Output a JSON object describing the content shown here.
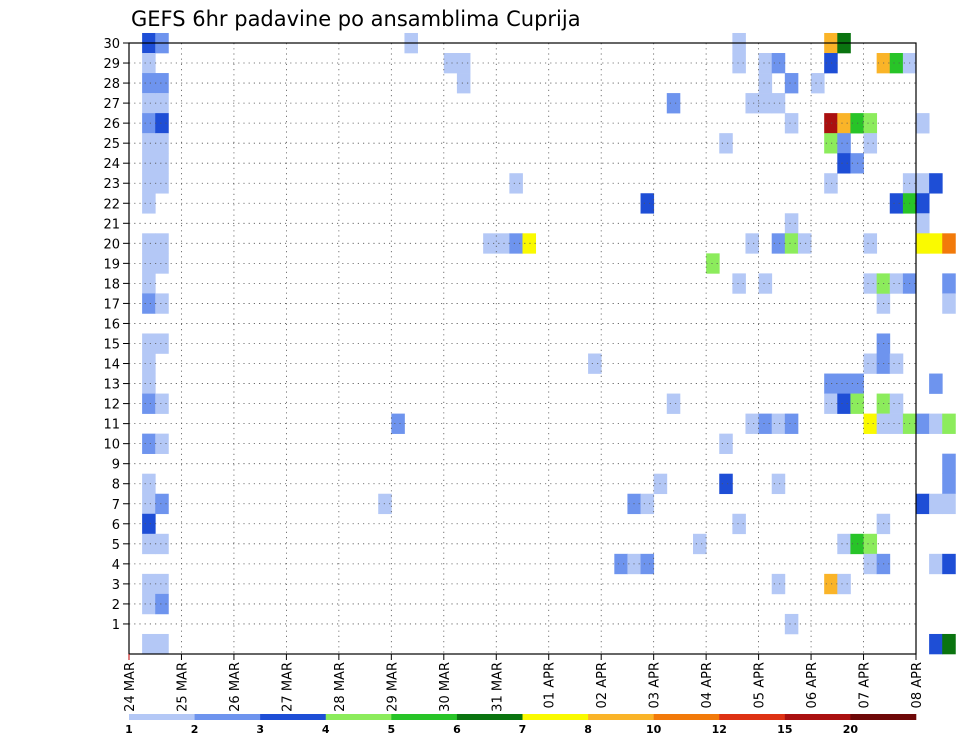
{
  "chart_data": {
    "type": "heatmap",
    "title": "GEFS 6hr padavine po ansamblima Cuprija",
    "x_tick_labels": [
      "24 MAR",
      "25 MAR",
      "26 MAR",
      "27 MAR",
      "28 MAR",
      "29 MAR",
      "30 MAR",
      "31 MAR",
      "01 APR",
      "02 APR",
      "03 APR",
      "04 APR",
      "05 APR",
      "06 APR",
      "07 APR",
      "08 APR"
    ],
    "y_tick_labels": [
      "1",
      "2",
      "3",
      "4",
      "5",
      "6",
      "7",
      "8",
      "9",
      "10",
      "11",
      "12",
      "13",
      "14",
      "15",
      "16",
      "17",
      "18",
      "19",
      "20",
      "21",
      "22",
      "23",
      "24",
      "25",
      "26",
      "27",
      "28",
      "29",
      "30"
    ],
    "y_range": [
      0,
      30
    ],
    "x_range_steps": [
      0,
      60
    ],
    "steps_per_day": 4,
    "grid": true,
    "colorbar_labels": [
      "1",
      "2",
      "3",
      "4",
      "5",
      "6",
      "7",
      "8",
      "10",
      "12",
      "15",
      "20"
    ],
    "colors": [
      "#b4c8f6",
      "#6e94ee",
      "#1e4ed6",
      "#8cec5c",
      "#28c428",
      "#0a7410",
      "#fafa00",
      "#fab428",
      "#f27a0a",
      "#de3214",
      "#aa1010",
      "#6e0808"
    ],
    "cells": [
      [
        1,
        30,
        2
      ],
      [
        1,
        29,
        0
      ],
      [
        1,
        28,
        1
      ],
      [
        1,
        27,
        0
      ],
      [
        1,
        26,
        1
      ],
      [
        1,
        25,
        0
      ],
      [
        1,
        24,
        0
      ],
      [
        1,
        23,
        0
      ],
      [
        1,
        22,
        0
      ],
      [
        1,
        20,
        0
      ],
      [
        1,
        19,
        0
      ],
      [
        1,
        18,
        0
      ],
      [
        1,
        17,
        1
      ],
      [
        1,
        15,
        0
      ],
      [
        1,
        14,
        0
      ],
      [
        1,
        13,
        0
      ],
      [
        1,
        12,
        1
      ],
      [
        1,
        10,
        1
      ],
      [
        1,
        8,
        0
      ],
      [
        1,
        7,
        0
      ],
      [
        1,
        6,
        2
      ],
      [
        1,
        5,
        0
      ],
      [
        1,
        3,
        0
      ],
      [
        1,
        2,
        0
      ],
      [
        1,
        0,
        0
      ],
      [
        2,
        30,
        1
      ],
      [
        2,
        28,
        1
      ],
      [
        2,
        27,
        0
      ],
      [
        2,
        26,
        2
      ],
      [
        2,
        25,
        0
      ],
      [
        2,
        24,
        0
      ],
      [
        2,
        23,
        0
      ],
      [
        2,
        20,
        0
      ],
      [
        2,
        19,
        0
      ],
      [
        2,
        17,
        0
      ],
      [
        2,
        15,
        0
      ],
      [
        2,
        12,
        0
      ],
      [
        2,
        10,
        0
      ],
      [
        2,
        7,
        1
      ],
      [
        2,
        5,
        0
      ],
      [
        2,
        3,
        0
      ],
      [
        2,
        2,
        1
      ],
      [
        2,
        0,
        0
      ],
      [
        19,
        7,
        0
      ],
      [
        20,
        11,
        1
      ],
      [
        21,
        30,
        0
      ],
      [
        24,
        29,
        0
      ],
      [
        25,
        29,
        0
      ],
      [
        25,
        28,
        0
      ],
      [
        27,
        20,
        0
      ],
      [
        28,
        20,
        0
      ],
      [
        29,
        20,
        1
      ],
      [
        30,
        20,
        6
      ],
      [
        29,
        23,
        0
      ],
      [
        35,
        14,
        0
      ],
      [
        37,
        4,
        1
      ],
      [
        38,
        4,
        0
      ],
      [
        39,
        4,
        1
      ],
      [
        38,
        7,
        1
      ],
      [
        39,
        7,
        0
      ],
      [
        40,
        8,
        0
      ],
      [
        39,
        22,
        2
      ],
      [
        41,
        12,
        0
      ],
      [
        41,
        27,
        1
      ],
      [
        43,
        5,
        0
      ],
      [
        44,
        19,
        3
      ],
      [
        45,
        25,
        0
      ],
      [
        45,
        10,
        0
      ],
      [
        45,
        8,
        2
      ],
      [
        46,
        30,
        0
      ],
      [
        46,
        29,
        0
      ],
      [
        46,
        18,
        0
      ],
      [
        46,
        6,
        0
      ],
      [
        47,
        27,
        0
      ],
      [
        47,
        20,
        0
      ],
      [
        47,
        11,
        0
      ],
      [
        48,
        27,
        0
      ],
      [
        48,
        29,
        0
      ],
      [
        48,
        18,
        0
      ],
      [
        48,
        11,
        1
      ],
      [
        48,
        28,
        0
      ],
      [
        49,
        29,
        1
      ],
      [
        49,
        27,
        0
      ],
      [
        49,
        20,
        1
      ],
      [
        49,
        11,
        0
      ],
      [
        49,
        8,
        0
      ],
      [
        49,
        3,
        0
      ],
      [
        50,
        26,
        0
      ],
      [
        50,
        21,
        0
      ],
      [
        50,
        20,
        3
      ],
      [
        50,
        11,
        1
      ],
      [
        50,
        28,
        1
      ],
      [
        50,
        1,
        0
      ],
      [
        51,
        20,
        0
      ],
      [
        52,
        28,
        0
      ],
      [
        53,
        30,
        7
      ],
      [
        53,
        29,
        2
      ],
      [
        53,
        26,
        10
      ],
      [
        53,
        25,
        3
      ],
      [
        53,
        23,
        0
      ],
      [
        53,
        13,
        1
      ],
      [
        53,
        12,
        0
      ],
      [
        53,
        3,
        7
      ],
      [
        54,
        30,
        5
      ],
      [
        54,
        26,
        7
      ],
      [
        54,
        25,
        1
      ],
      [
        54,
        24,
        2
      ],
      [
        54,
        13,
        1
      ],
      [
        54,
        12,
        2
      ],
      [
        54,
        5,
        0
      ],
      [
        54,
        3,
        0
      ],
      [
        55,
        26,
        4
      ],
      [
        55,
        24,
        1
      ],
      [
        55,
        13,
        1
      ],
      [
        55,
        12,
        3
      ],
      [
        55,
        5,
        4
      ],
      [
        56,
        26,
        3
      ],
      [
        56,
        25,
        0
      ],
      [
        56,
        20,
        0
      ],
      [
        56,
        18,
        0
      ],
      [
        56,
        14,
        0
      ],
      [
        56,
        11,
        6
      ],
      [
        56,
        5,
        3
      ],
      [
        56,
        4,
        0
      ],
      [
        57,
        29,
        7
      ],
      [
        57,
        17,
        0
      ],
      [
        57,
        18,
        3
      ],
      [
        57,
        15,
        1
      ],
      [
        57,
        14,
        1
      ],
      [
        57,
        12,
        3
      ],
      [
        57,
        11,
        0
      ],
      [
        57,
        6,
        0
      ],
      [
        57,
        4,
        1
      ],
      [
        58,
        29,
        4
      ],
      [
        58,
        18,
        0
      ],
      [
        58,
        14,
        0
      ],
      [
        58,
        11,
        0
      ],
      [
        58,
        12,
        0
      ],
      [
        58,
        22,
        2
      ],
      [
        59,
        29,
        0
      ],
      [
        59,
        23,
        0
      ],
      [
        59,
        22,
        4
      ],
      [
        59,
        18,
        1
      ],
      [
        59,
        11,
        3
      ],
      [
        60,
        23,
        0
      ],
      [
        60,
        22,
        2
      ],
      [
        60,
        20,
        0
      ],
      [
        60,
        26,
        0
      ],
      [
        60,
        21,
        0
      ],
      [
        60,
        20,
        6
      ],
      [
        60,
        11,
        1
      ],
      [
        60,
        7,
        2
      ],
      [
        61,
        20,
        6
      ],
      [
        61,
        23,
        2
      ],
      [
        61,
        13,
        1
      ],
      [
        61,
        11,
        0
      ],
      [
        61,
        7,
        0
      ],
      [
        61,
        4,
        0
      ],
      [
        61,
        0,
        2
      ],
      [
        62,
        20,
        8
      ],
      [
        62,
        18,
        1
      ],
      [
        62,
        17,
        0
      ],
      [
        62,
        11,
        3
      ],
      [
        62,
        9,
        1
      ],
      [
        62,
        8,
        1
      ],
      [
        62,
        7,
        0
      ],
      [
        62,
        4,
        2
      ],
      [
        62,
        0,
        5
      ]
    ]
  }
}
